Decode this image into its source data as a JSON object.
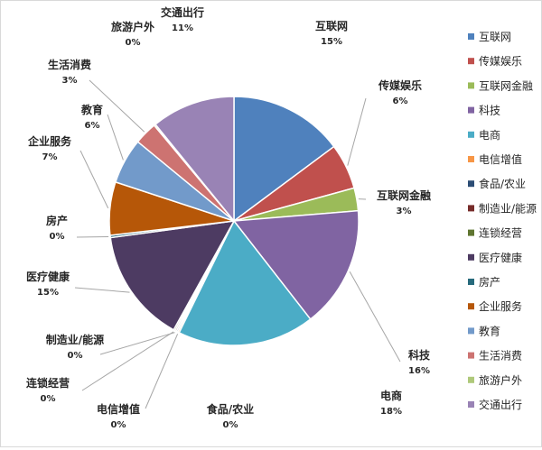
{
  "chart_data": {
    "type": "pie",
    "title": "",
    "legend_position": "right",
    "slices": [
      {
        "name": "互联网",
        "value": 15,
        "label": "15%",
        "color": "#4f81bd"
      },
      {
        "name": "传媒娱乐",
        "value": 6,
        "label": "6%",
        "color": "#c0504d"
      },
      {
        "name": "互联网金融",
        "value": 3,
        "label": "3%",
        "color": "#9bbb59"
      },
      {
        "name": "科技",
        "value": 16,
        "label": "16%",
        "color": "#8064a2"
      },
      {
        "name": "电商",
        "value": 18,
        "label": "18%",
        "color": "#4bacc6"
      },
      {
        "name": "电信增值",
        "value": 0.2,
        "label": "0%",
        "color": "#f79646"
      },
      {
        "name": "食品/农业",
        "value": 0.2,
        "label": "0%",
        "color": "#2c4d75"
      },
      {
        "name": "制造业/能源",
        "value": 0.2,
        "label": "0%",
        "color": "#772c2a"
      },
      {
        "name": "连锁经营",
        "value": 0.2,
        "label": "0%",
        "color": "#5f7530"
      },
      {
        "name": "医疗健康",
        "value": 15,
        "label": "15%",
        "color": "#4d3b62"
      },
      {
        "name": "房产",
        "value": 0.3,
        "label": "0%",
        "color": "#276a7c"
      },
      {
        "name": "企业服务",
        "value": 7,
        "label": "7%",
        "color": "#b65708"
      },
      {
        "name": "教育",
        "value": 6,
        "label": "6%",
        "color": "#729aca"
      },
      {
        "name": "生活消费",
        "value": 3,
        "label": "3%",
        "color": "#cd7371"
      },
      {
        "name": "旅游户外",
        "value": 0.2,
        "label": "0%",
        "color": "#afc97a"
      },
      {
        "name": "交通出行",
        "value": 11,
        "label": "11%",
        "color": "#9983b5"
      }
    ]
  }
}
